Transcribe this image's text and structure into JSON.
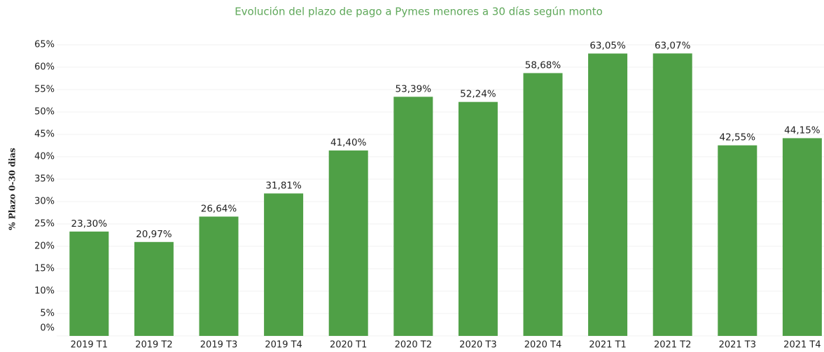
{
  "chart_data": {
    "type": "bar",
    "title": "Evolución del plazo de pago a Pymes menores a 30 días  según monto",
    "y_label": "% Plazo 0-30 dias",
    "categories": [
      "2019 T1",
      "2019 T2",
      "2019 T3",
      "2019 T4",
      "2020 T1",
      "2020 T2",
      "2020 T3",
      "2020 T4",
      "2021 T1",
      "2021 T2",
      "2021 T3",
      "2021 T4"
    ],
    "values": [
      23.3,
      20.97,
      26.64,
      31.81,
      41.4,
      53.39,
      52.24,
      58.68,
      63.05,
      63.07,
      42.55,
      44.15
    ],
    "value_labels": [
      "23,30%",
      "20,97%",
      "26,64%",
      "31,81%",
      "41,40%",
      "53,39%",
      "52,24%",
      "58,68%",
      "63,05%",
      "63,07%",
      "42,55%",
      "44,15%"
    ],
    "color": "#4fa046",
    "ylim": [
      0,
      65
    ],
    "yticks": [
      {
        "value": 0,
        "label": "0%"
      },
      {
        "value": 5,
        "label": "5%"
      },
      {
        "value": 10,
        "label": "10%"
      },
      {
        "value": 15,
        "label": "15%"
      },
      {
        "value": 20,
        "label": "20%"
      },
      {
        "value": 25,
        "label": "25%"
      },
      {
        "value": 30,
        "label": "30%"
      },
      {
        "value": 35,
        "label": "35%"
      },
      {
        "value": 40,
        "label": "40%"
      },
      {
        "value": 45,
        "label": "45%"
      },
      {
        "value": 50,
        "label": "50%"
      },
      {
        "value": 55,
        "label": "55%"
      },
      {
        "value": 60,
        "label": "60%"
      },
      {
        "value": 65,
        "label": "65%"
      }
    ],
    "grid": true
  }
}
